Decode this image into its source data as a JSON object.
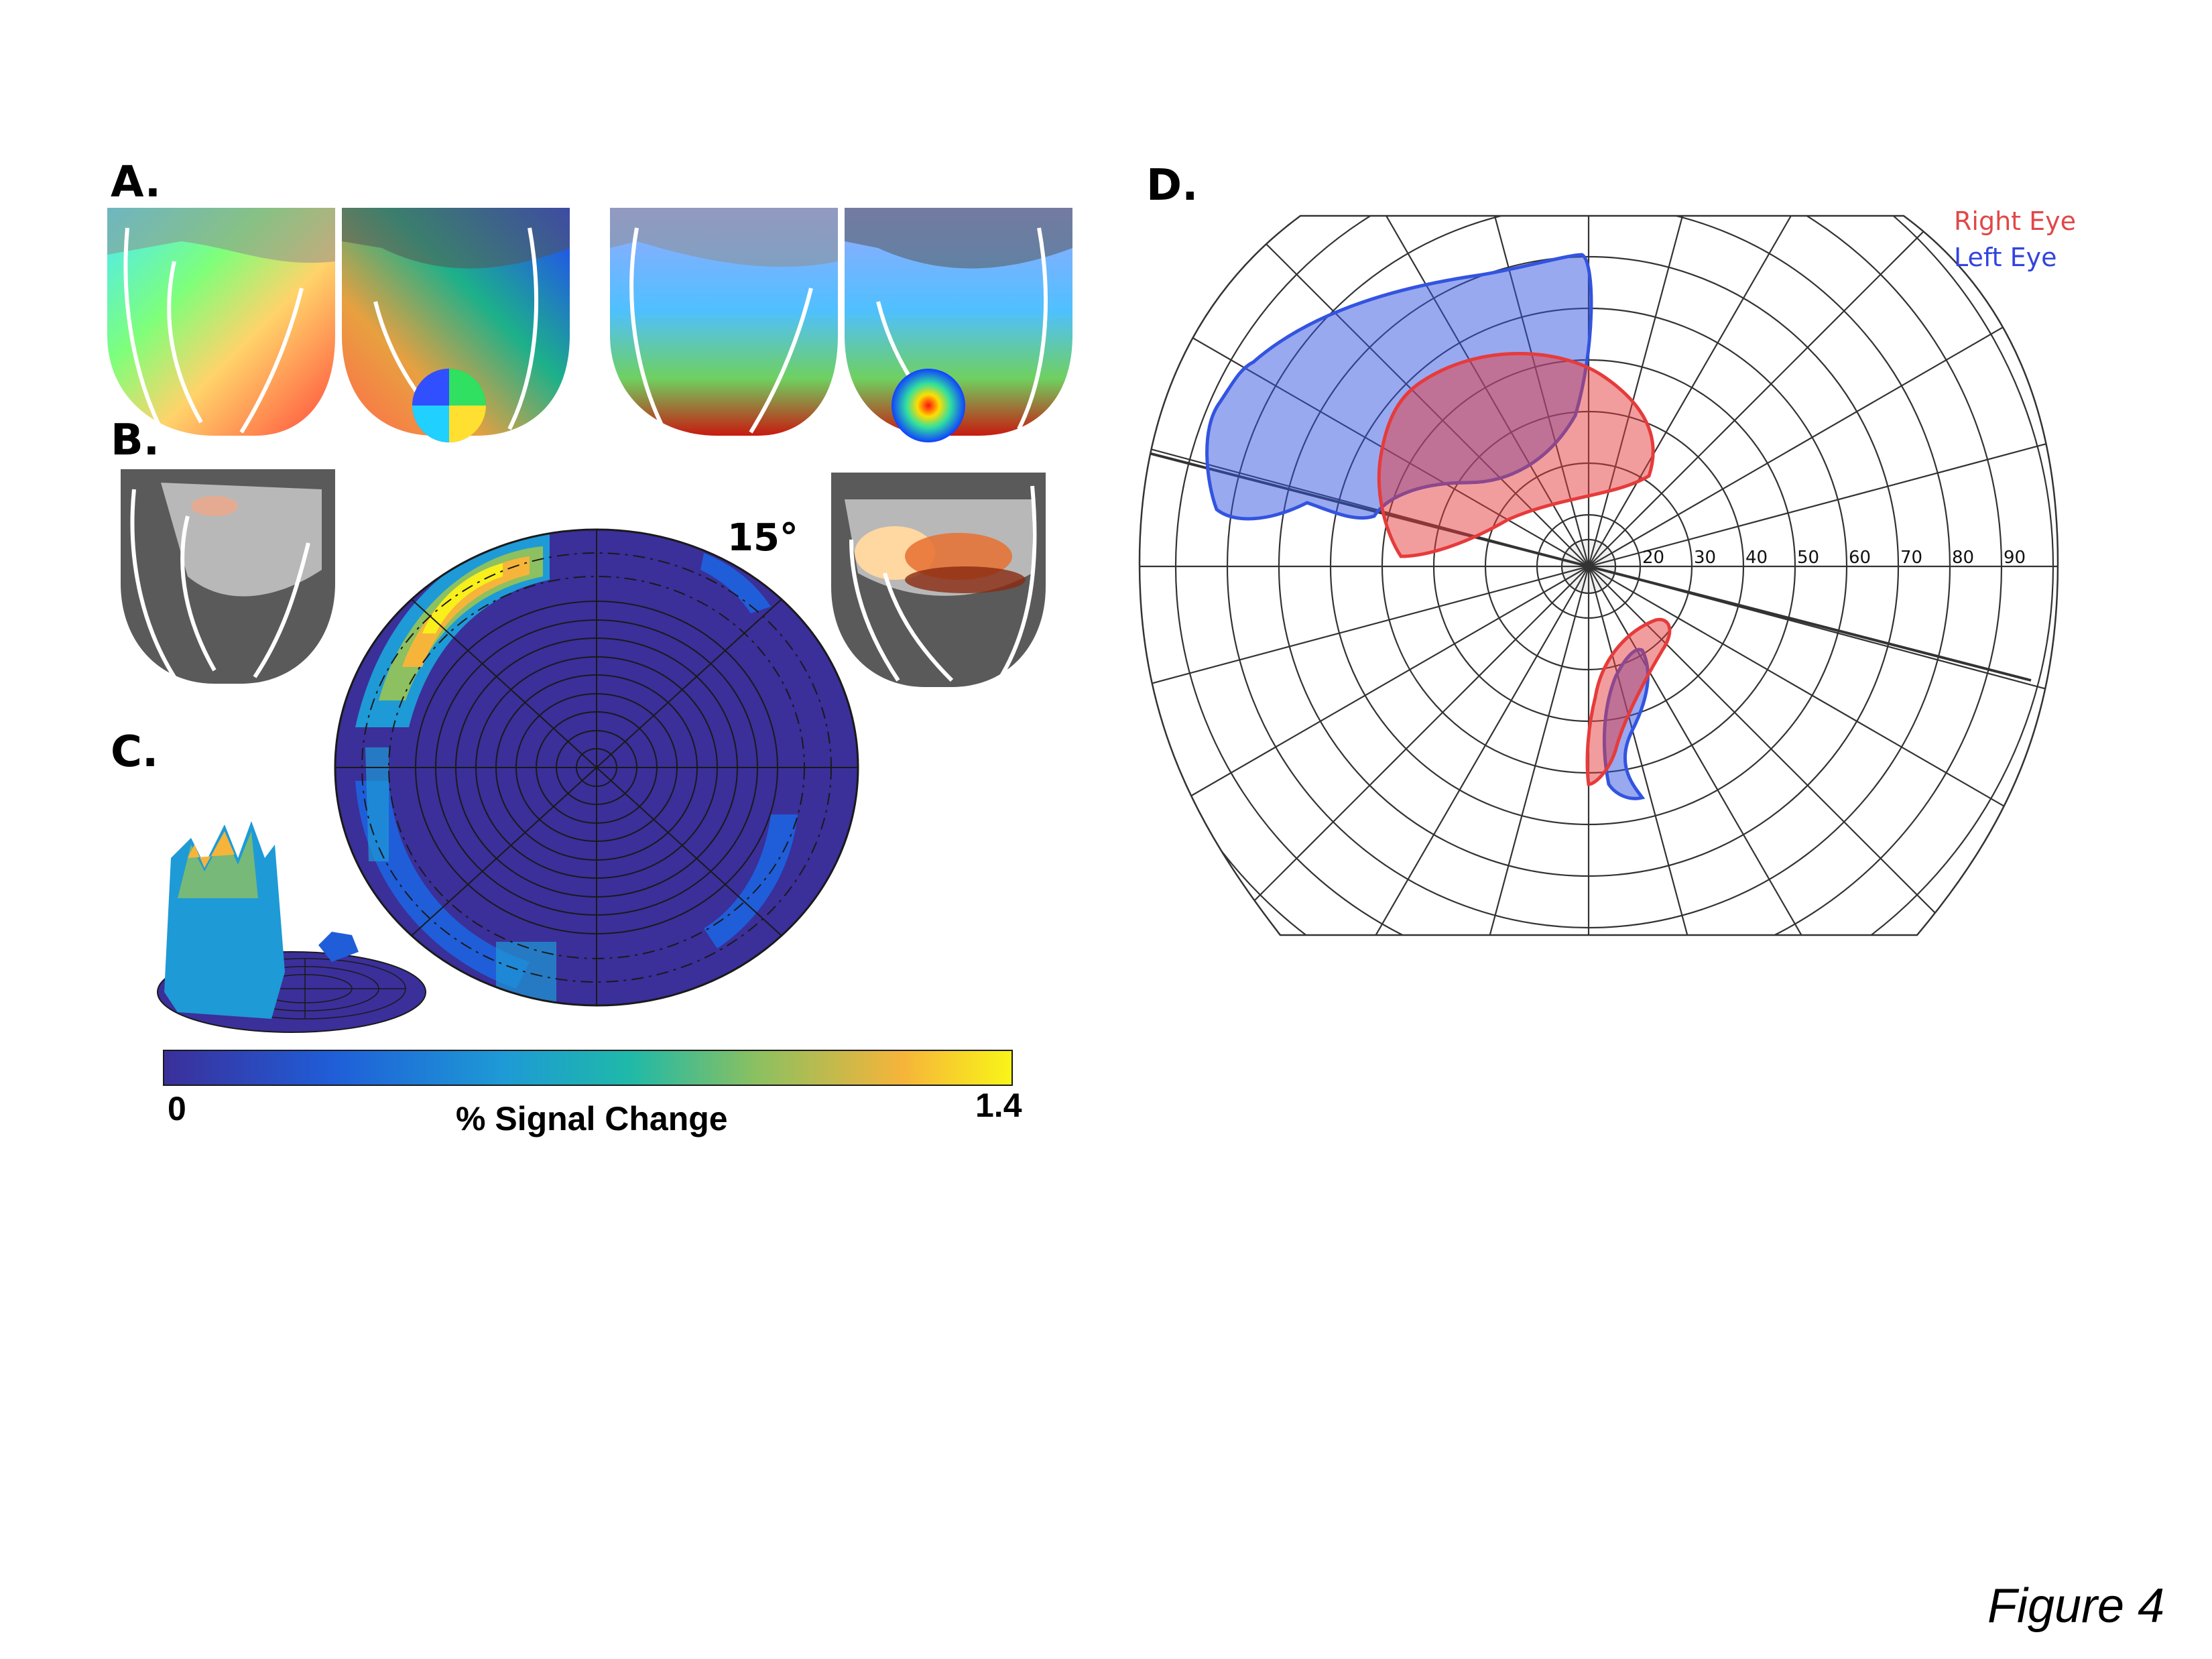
{
  "panels": {
    "a_label": "A.",
    "b_label": "B.",
    "c_label": "C.",
    "d_label": "D."
  },
  "panel_c": {
    "eccentricity_label": "15°",
    "colorbar": {
      "min_label": "0",
      "max_label": "1.4",
      "title": "% Signal Change",
      "colors": [
        "#3b2f9a",
        "#1f5ed8",
        "#1e9ad6",
        "#1fb9a8",
        "#8cc060",
        "#f6b43a",
        "#f8f518"
      ]
    }
  },
  "panel_d": {
    "legend": {
      "right_eye": "Right Eye",
      "left_eye": "Left Eye"
    },
    "ring_labels": [
      "20",
      "30",
      "40",
      "50",
      "60",
      "70",
      "80",
      "90"
    ],
    "colors": {
      "right_eye": "#e63b3b",
      "left_eye": "#3354e0"
    }
  },
  "caption": "Figure 4"
}
